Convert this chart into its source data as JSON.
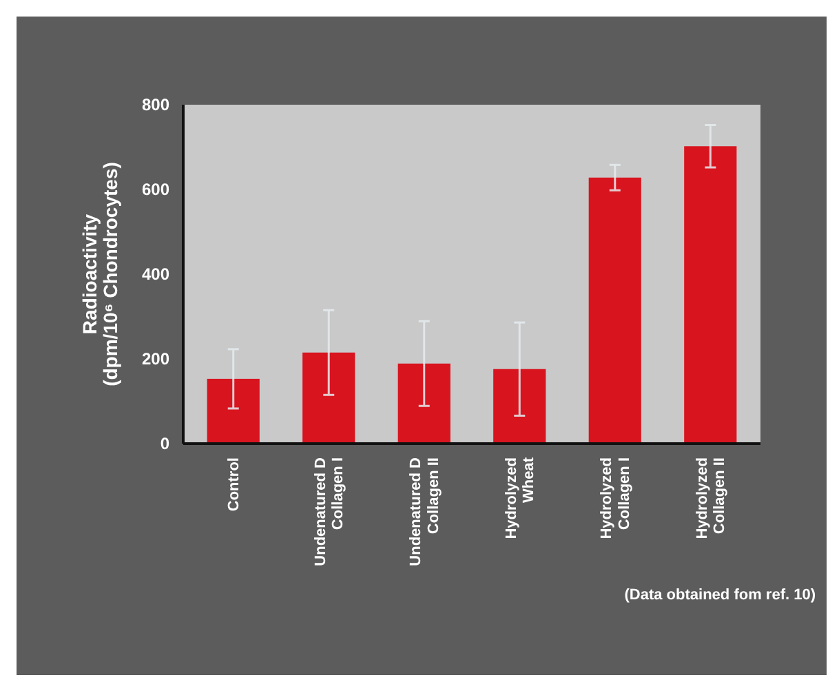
{
  "chart_data": {
    "type": "bar",
    "ylabel": "Radioactivity\n(dpm/10⁶ Chondrocytes)",
    "categories": [
      "Control",
      "Undenatured D\nCollagen I",
      "Undenatured D\nCollagen II",
      "Hydrolyzed\nWheat",
      "Hydrolyzed\nCollagen I",
      "Hydrolyzed\nCollagen II"
    ],
    "values": [
      153,
      215,
      189,
      176,
      628,
      702
    ],
    "errors": [
      70,
      100,
      100,
      110,
      30,
      50
    ],
    "color": "#d8141f",
    "ylim": [
      0,
      800
    ],
    "yticks": [
      0,
      200,
      400,
      600,
      800
    ],
    "grid": false,
    "annotations": [
      "(Data obtained fom ref. 10)"
    ]
  }
}
